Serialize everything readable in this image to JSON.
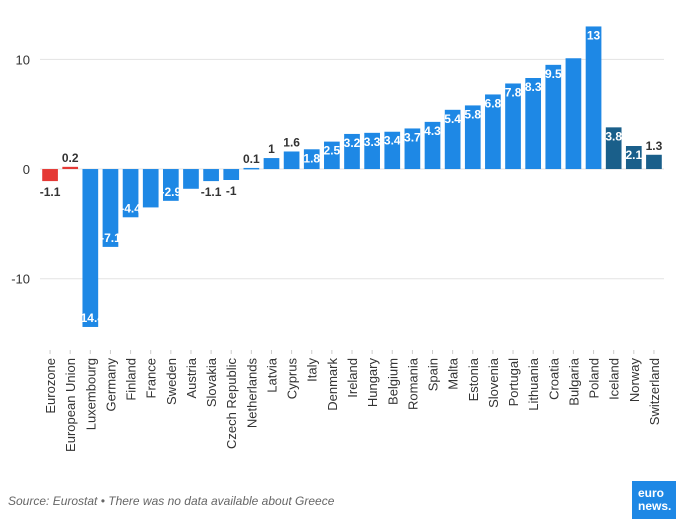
{
  "chart_data": {
    "type": "bar",
    "title": "",
    "xlabel": "",
    "ylabel": "",
    "ylim": [
      -16.5,
      14.5
    ],
    "yticks": [
      10,
      0,
      -10
    ],
    "grid": "horizontal",
    "categories": [
      "Eurozone",
      "European Union",
      "Luxembourg",
      "Germany",
      "Finland",
      "France",
      "Sweden",
      "Austria",
      "Slovakia",
      "Czech Republic",
      "Netherlands",
      "Latvia",
      "Cyprus",
      "Italy",
      "Denmark",
      "Ireland",
      "Hungary",
      "Belgium",
      "Romania",
      "Spain",
      "Malta",
      "Estonia",
      "Slovenia",
      "Portugal",
      "Lithuania",
      "Croatia",
      "Bulgaria",
      "Poland",
      "Iceland",
      "Norway",
      "Switzerland"
    ],
    "values": [
      -1.1,
      0.2,
      -14.4,
      -7.1,
      -4.4,
      -3.5,
      -2.9,
      -1.8,
      -1.1,
      -1,
      0.1,
      1,
      1.6,
      1.8,
      2.5,
      3.2,
      3.3,
      3.4,
      3.7,
      4.3,
      5.4,
      5.8,
      6.8,
      7.8,
      8.3,
      9.5,
      10.1,
      13,
      3.8,
      2.1,
      1.3
    ],
    "data_labels": [
      "-1.1",
      "0.2",
      "-14.4",
      "-7.1",
      "-4.4",
      "",
      "-2.9",
      "",
      "-1.1",
      "-1",
      "0.1",
      "1",
      "1.6",
      "1.8",
      "2.5",
      "3.2",
      "3.3",
      "3.4",
      "3.7",
      "4.3",
      "5.4",
      "5.8",
      "6.8",
      "7.8",
      "8.3",
      "9.5",
      "",
      "13",
      "3.8",
      "2.1",
      "1.3"
    ],
    "bar_colors": [
      "#e53935",
      "#e53935",
      "#1e88e5",
      "#1e88e5",
      "#1e88e5",
      "#1e88e5",
      "#1e88e5",
      "#1e88e5",
      "#1e88e5",
      "#1e88e5",
      "#1e88e5",
      "#1e88e5",
      "#1e88e5",
      "#1e88e5",
      "#1e88e5",
      "#1e88e5",
      "#1e88e5",
      "#1e88e5",
      "#1e88e5",
      "#1e88e5",
      "#1e88e5",
      "#1e88e5",
      "#1e88e5",
      "#1e88e5",
      "#1e88e5",
      "#1e88e5",
      "#1e88e5",
      "#1e88e5",
      "#1a5f8a",
      "#1a5f8a",
      "#1a5f8a"
    ]
  },
  "footer": {
    "source": "Source: Eurostat • There was no data available about Greece"
  },
  "logo": {
    "line1": "euro",
    "line2": "news."
  },
  "colors": {
    "grid": "#e3e3e3",
    "label_text": "#333333",
    "inside_label": "#ffffff"
  }
}
